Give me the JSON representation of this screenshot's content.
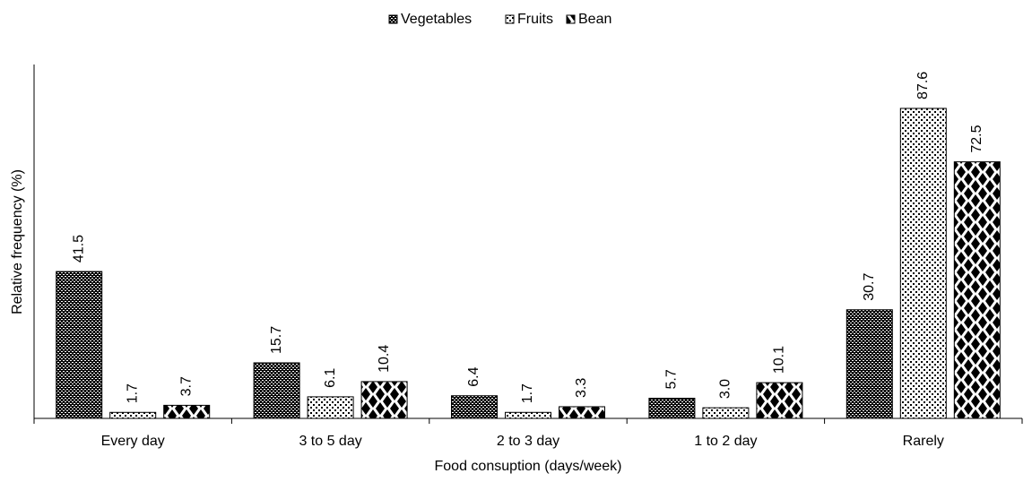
{
  "chart_data": {
    "type": "bar",
    "x_label": "Food consuption (days/week)",
    "y_label": "Relative frequency  (%)",
    "categories": [
      "Every day",
      "3 to 5 day",
      "2 to 3 day",
      "1 to 2 day",
      "Rarely"
    ],
    "series": [
      {
        "name": "Vegetables",
        "values": [
          41.5,
          15.7,
          6.4,
          5.7,
          30.7
        ],
        "value_labels": [
          "41.5",
          "15.7",
          "6.4",
          "5.7",
          "30.7"
        ]
      },
      {
        "name": "Fruits",
        "values": [
          1.7,
          6.1,
          1.7,
          3.0,
          87.6
        ],
        "value_labels": [
          "1.7",
          "6.1",
          "1.7",
          "3.0",
          "87.6"
        ]
      },
      {
        "name": "Bean",
        "values": [
          3.7,
          10.4,
          3.3,
          10.1,
          72.5
        ],
        "value_labels": [
          "3.7",
          "10.4",
          "3.3",
          "10.1",
          "72.5"
        ]
      }
    ],
    "ylim": [
      0,
      100
    ],
    "legend": "top"
  }
}
